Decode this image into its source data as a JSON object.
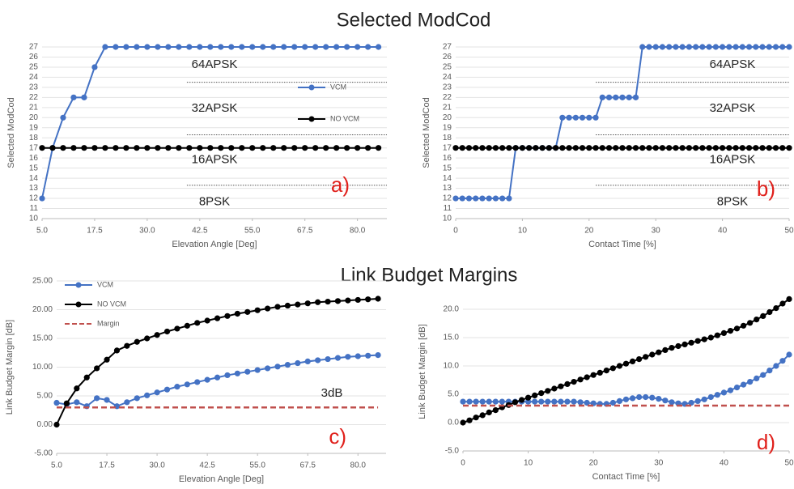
{
  "headings": [
    "Selected ModCod",
    "Link Budget Margins"
  ],
  "chart_data": [
    {
      "type": "line",
      "xlabel": "Elevation Angle [Deg]",
      "ylabel": "Selected ModCod",
      "x": [
        5,
        7.5,
        10,
        12.5,
        15,
        17.5,
        20,
        22.5,
        25,
        27.5,
        30,
        32.5,
        35,
        37.5,
        40,
        42.5,
        45,
        47.5,
        50,
        52.5,
        55,
        57.5,
        60,
        62.5,
        65,
        67.5,
        70,
        72.5,
        75,
        77.5,
        80,
        82.5,
        85
      ],
      "series": [
        {
          "name": "VCM",
          "color": "#4472c4",
          "values": [
            12,
            17,
            20,
            22,
            22,
            25,
            27,
            27,
            27,
            27,
            27,
            27,
            27,
            27,
            27,
            27,
            27,
            27,
            27,
            27,
            27,
            27,
            27,
            27,
            27,
            27,
            27,
            27,
            27,
            27,
            27,
            27,
            27
          ]
        },
        {
          "name": "NO VCM",
          "color": "#000000",
          "values": [
            17,
            17,
            17,
            17,
            17,
            17,
            17,
            17,
            17,
            17,
            17,
            17,
            17,
            17,
            17,
            17,
            17,
            17,
            17,
            17,
            17,
            17,
            17,
            17,
            17,
            17,
            17,
            17,
            17,
            17,
            17,
            17,
            17
          ]
        }
      ],
      "xlim": [
        5,
        87
      ],
      "ylim": [
        10,
        27
      ],
      "xticks": [
        {
          "value": 5,
          "label": "5.0"
        },
        {
          "value": 17.5,
          "label": "17.5"
        },
        {
          "value": 30,
          "label": "30.0"
        },
        {
          "value": 42.5,
          "label": "42.5"
        },
        {
          "value": 55,
          "label": "55.0"
        },
        {
          "value": 67.5,
          "label": "67.5"
        },
        {
          "value": 80,
          "label": "80.0"
        }
      ],
      "yticks": [
        10,
        11,
        12,
        13,
        14,
        15,
        16,
        17,
        18,
        19,
        20,
        21,
        22,
        23,
        24,
        25,
        26,
        27
      ],
      "thresholds": [
        23.5,
        18.3,
        13.3
      ],
      "regions": [
        "64APSK",
        "32APSK",
        "16APSK",
        "8PSK"
      ],
      "panel_label": "a)",
      "grid": true,
      "legend": "right"
    },
    {
      "type": "line",
      "xlabel": "Contact Time [%]",
      "ylabel": "Selected ModCod",
      "x": [
        0,
        1,
        2,
        3,
        4,
        5,
        6,
        7,
        8,
        9,
        10,
        11,
        12,
        13,
        14,
        15,
        16,
        17,
        18,
        19,
        20,
        21,
        22,
        23,
        24,
        25,
        26,
        27,
        28,
        29,
        30,
        31,
        32,
        33,
        34,
        35,
        36,
        37,
        38,
        39,
        40,
        41,
        42,
        43,
        44,
        45,
        46,
        47,
        48,
        49,
        50
      ],
      "series": [
        {
          "color": "#4472c4",
          "values": [
            12,
            12,
            12,
            12,
            12,
            12,
            12,
            12,
            12,
            17,
            17,
            17,
            17,
            17,
            17,
            17,
            20,
            20,
            20,
            20,
            20,
            20,
            22,
            22,
            22,
            22,
            22,
            22,
            27,
            27,
            27,
            27,
            27,
            27,
            27,
            27,
            27,
            27,
            27,
            27,
            27,
            27,
            27,
            27,
            27,
            27,
            27,
            27,
            27,
            27,
            27
          ]
        },
        {
          "color": "#000000",
          "values": [
            17,
            17,
            17,
            17,
            17,
            17,
            17,
            17,
            17,
            17,
            17,
            17,
            17,
            17,
            17,
            17,
            17,
            17,
            17,
            17,
            17,
            17,
            17,
            17,
            17,
            17,
            17,
            17,
            17,
            17,
            17,
            17,
            17,
            17,
            17,
            17,
            17,
            17,
            17,
            17,
            17,
            17,
            17,
            17,
            17,
            17,
            17,
            17,
            17,
            17,
            17
          ]
        }
      ],
      "xlim": [
        0,
        50
      ],
      "ylim": [
        10,
        27
      ],
      "xticks": [
        0,
        10,
        20,
        30,
        40,
        50
      ],
      "yticks": [
        10,
        11,
        12,
        13,
        14,
        15,
        16,
        17,
        18,
        19,
        20,
        21,
        22,
        23,
        24,
        25,
        26,
        27
      ],
      "thresholds": [
        23.5,
        18.3,
        13.3
      ],
      "regions": [
        "64APSK",
        "32APSK",
        "16APSK",
        "8PSK"
      ],
      "panel_label": "b)",
      "grid": true
    },
    {
      "type": "line",
      "xlabel": "Elevation Angle [Deg]",
      "ylabel": "Link Budget Margin [dB]",
      "x": [
        5,
        7.5,
        10,
        12.5,
        15,
        17.5,
        20,
        22.5,
        25,
        27.5,
        30,
        32.5,
        35,
        37.5,
        40,
        42.5,
        45,
        47.5,
        50,
        52.5,
        55,
        57.5,
        60,
        62.5,
        65,
        67.5,
        70,
        72.5,
        75,
        77.5,
        80,
        82.5,
        85
      ],
      "series": [
        {
          "name": "VCM",
          "color": "#4472c4",
          "values": [
            3.8,
            3.5,
            3.9,
            3.2,
            4.6,
            4.3,
            3.2,
            3.9,
            4.6,
            5.1,
            5.6,
            6.1,
            6.6,
            7.0,
            7.4,
            7.8,
            8.2,
            8.6,
            8.9,
            9.2,
            9.5,
            9.8,
            10.1,
            10.4,
            10.7,
            11.0,
            11.2,
            11.4,
            11.6,
            11.8,
            11.9,
            12.0,
            12.1
          ]
        },
        {
          "name": "NO VCM",
          "color": "#000000",
          "values": [
            0,
            3.7,
            6.3,
            8.2,
            9.8,
            11.3,
            12.9,
            13.7,
            14.4,
            15.0,
            15.6,
            16.2,
            16.7,
            17.2,
            17.7,
            18.1,
            18.5,
            18.9,
            19.3,
            19.6,
            19.9,
            20.2,
            20.5,
            20.7,
            20.9,
            21.1,
            21.3,
            21.4,
            21.5,
            21.6,
            21.7,
            21.8,
            21.9
          ]
        },
        {
          "name": "Margin",
          "color": "#c0504d",
          "dashed": true,
          "values": [
            3,
            3,
            3,
            3,
            3,
            3,
            3,
            3,
            3,
            3,
            3,
            3,
            3,
            3,
            3,
            3,
            3,
            3,
            3,
            3,
            3,
            3,
            3,
            3,
            3,
            3,
            3,
            3,
            3,
            3,
            3,
            3,
            3
          ]
        }
      ],
      "xlim": [
        5,
        87
      ],
      "ylim": [
        -5,
        25
      ],
      "xticks": [
        {
          "value": 5,
          "label": "5.0"
        },
        {
          "value": 17.5,
          "label": "17.5"
        },
        {
          "value": 30,
          "label": "30.0"
        },
        {
          "value": 42.5,
          "label": "42.5"
        },
        {
          "value": 55,
          "label": "55.0"
        },
        {
          "value": 67.5,
          "label": "67.5"
        },
        {
          "value": 80,
          "label": "80.0"
        }
      ],
      "yticks": [
        {
          "value": -5,
          "label": "-5.00"
        },
        {
          "value": 0,
          "label": "0.00"
        },
        {
          "value": 5,
          "label": "5.00"
        },
        {
          "value": 10,
          "label": "10.00"
        },
        {
          "value": 15,
          "label": "15.00"
        },
        {
          "value": 20,
          "label": "20.00"
        },
        {
          "value": 25,
          "label": "25.00"
        }
      ],
      "annotation": "3dB",
      "panel_label": "c)",
      "grid": true,
      "legend": "upper left"
    },
    {
      "type": "line",
      "xlabel": "Contact Time [%]",
      "ylabel": "Link Budget Margin [dB]",
      "x": [
        0,
        1,
        2,
        3,
        4,
        5,
        6,
        7,
        8,
        9,
        10,
        11,
        12,
        13,
        14,
        15,
        16,
        17,
        18,
        19,
        20,
        21,
        22,
        23,
        24,
        25,
        26,
        27,
        28,
        29,
        30,
        31,
        32,
        33,
        34,
        35,
        36,
        37,
        38,
        39,
        40,
        41,
        42,
        43,
        44,
        45,
        46,
        47,
        48,
        49,
        50
      ],
      "series": [
        {
          "color": "#4472c4",
          "values": [
            3.7,
            3.7,
            3.7,
            3.7,
            3.7,
            3.7,
            3.7,
            3.7,
            3.7,
            3.7,
            3.7,
            3.7,
            3.7,
            3.7,
            3.7,
            3.7,
            3.7,
            3.7,
            3.6,
            3.5,
            3.4,
            3.3,
            3.3,
            3.5,
            3.8,
            4.1,
            4.3,
            4.5,
            4.5,
            4.4,
            4.2,
            3.9,
            3.6,
            3.4,
            3.3,
            3.5,
            3.8,
            4.1,
            4.5,
            4.9,
            5.3,
            5.7,
            6.2,
            6.7,
            7.2,
            7.8,
            8.4,
            9.2,
            10.0,
            10.9,
            12.0
          ]
        },
        {
          "color": "#000000",
          "values": [
            0,
            0.4,
            0.9,
            1.3,
            1.8,
            2.2,
            2.7,
            3.1,
            3.6,
            4.0,
            4.4,
            4.8,
            5.2,
            5.6,
            6.0,
            6.4,
            6.8,
            7.2,
            7.6,
            8.0,
            8.4,
            8.8,
            9.2,
            9.6,
            10.0,
            10.4,
            10.8,
            11.2,
            11.6,
            12.0,
            12.4,
            12.8,
            13.2,
            13.5,
            13.8,
            14.1,
            14.4,
            14.7,
            15.0,
            15.4,
            15.8,
            16.2,
            16.6,
            17.1,
            17.6,
            18.2,
            18.8,
            19.5,
            20.2,
            21.0,
            21.8
          ]
        },
        {
          "color": "#c0504d",
          "dashed": true,
          "values": [
            3,
            3,
            3,
            3,
            3,
            3,
            3,
            3,
            3,
            3,
            3,
            3,
            3,
            3,
            3,
            3,
            3,
            3,
            3,
            3,
            3,
            3,
            3,
            3,
            3,
            3,
            3,
            3,
            3,
            3,
            3,
            3,
            3,
            3,
            3,
            3,
            3,
            3,
            3,
            3,
            3,
            3,
            3,
            3,
            3,
            3,
            3,
            3,
            3,
            3,
            3
          ]
        }
      ],
      "xlim": [
        0,
        50
      ],
      "ylim": [
        -5,
        23
      ],
      "xticks": [
        0,
        10,
        20,
        30,
        40,
        50
      ],
      "yticks": [
        {
          "value": -5,
          "label": "-5.0"
        },
        {
          "value": 0,
          "label": "0.0"
        },
        {
          "value": 5,
          "label": "5.0"
        },
        {
          "value": 10,
          "label": "10.0"
        },
        {
          "value": 15,
          "label": "15.0"
        },
        {
          "value": 20,
          "label": "20.0"
        }
      ],
      "panel_label": "d)",
      "grid": true
    }
  ]
}
